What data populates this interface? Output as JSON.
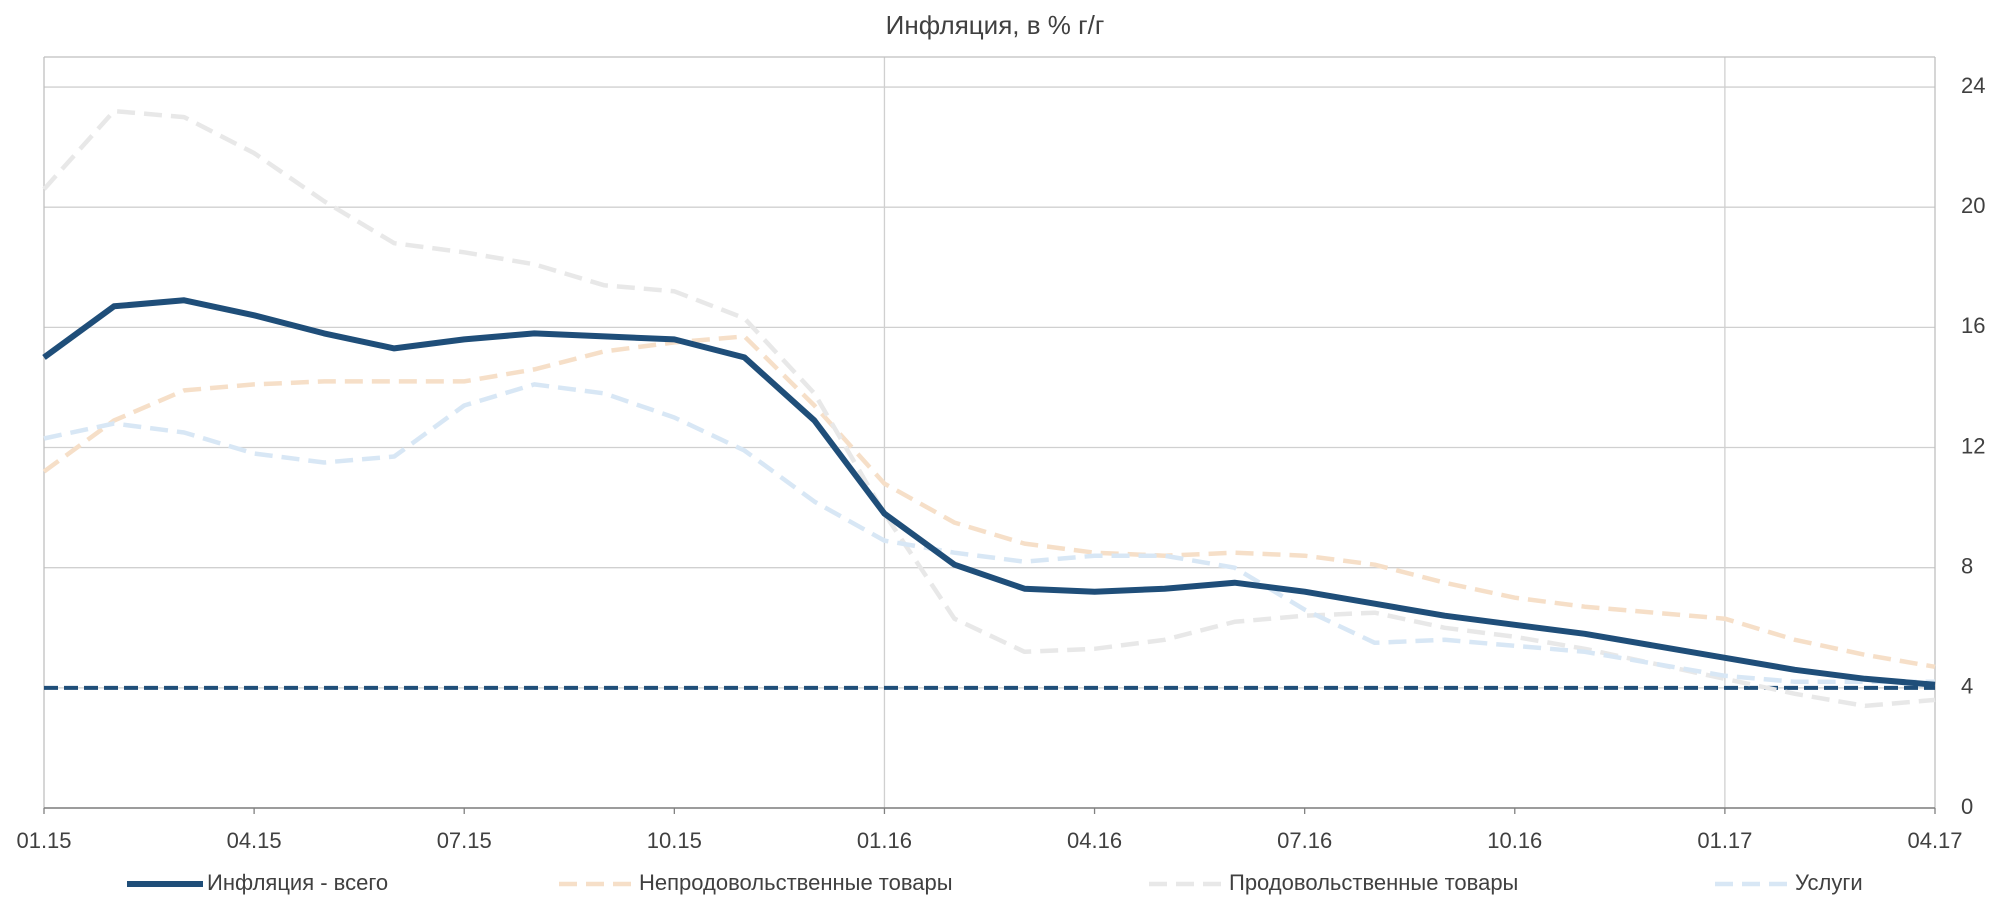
{
  "chart_data": {
    "type": "line",
    "title": "Инфляция, в % г/г",
    "categories": [
      "01.15",
      null,
      null,
      "04.15",
      null,
      null,
      "07.15",
      null,
      null,
      "10.15",
      null,
      null,
      "01.16",
      null,
      null,
      "04.16",
      null,
      null,
      "07.16",
      null,
      null,
      "10.16",
      null,
      null,
      "01.17",
      null,
      null,
      "04.17"
    ],
    "series": [
      {
        "name": "Инфляция - всего",
        "color": "#1f4e79",
        "dash": false,
        "values": [
          15.0,
          16.7,
          16.9,
          16.4,
          15.8,
          15.3,
          15.6,
          15.8,
          15.7,
          15.6,
          15.0,
          12.9,
          9.8,
          8.1,
          7.3,
          7.2,
          7.3,
          7.5,
          7.2,
          6.8,
          6.4,
          6.1,
          5.8,
          5.4,
          5.0,
          4.6,
          4.3,
          4.1
        ]
      },
      {
        "name": "Непродовольственные товары",
        "color": "#f6dfc8",
        "dash": true,
        "values": [
          11.2,
          12.9,
          13.9,
          14.1,
          14.2,
          14.2,
          14.2,
          14.6,
          15.2,
          15.5,
          15.7,
          13.4,
          10.8,
          9.5,
          8.8,
          8.5,
          8.4,
          8.5,
          8.4,
          8.1,
          7.5,
          7.0,
          6.7,
          6.5,
          6.3,
          5.6,
          5.1,
          4.7
        ]
      },
      {
        "name": "Продовольственные товары",
        "color": "#e8e8e8",
        "dash": true,
        "values": [
          20.6,
          23.2,
          23.0,
          21.8,
          20.2,
          18.8,
          18.5,
          18.1,
          17.4,
          17.2,
          16.3,
          13.8,
          9.8,
          6.3,
          5.2,
          5.3,
          5.6,
          6.2,
          6.4,
          6.5,
          6.0,
          5.7,
          5.3,
          4.8,
          4.3,
          3.8,
          3.4,
          3.6
        ]
      },
      {
        "name": "Услуги",
        "color": "#d8e7f5",
        "dash": true,
        "values": [
          12.3,
          12.8,
          12.5,
          11.8,
          11.5,
          11.7,
          13.4,
          14.1,
          13.8,
          13.0,
          11.9,
          10.2,
          8.9,
          8.5,
          8.2,
          8.4,
          8.4,
          8.0,
          6.6,
          5.5,
          5.6,
          5.4,
          5.2,
          4.8,
          4.4,
          4.2,
          4.2,
          4.2
        ]
      }
    ],
    "hlines": [
      {
        "value": 4,
        "color": "#1f4e79"
      }
    ],
    "ylim": [
      0,
      25
    ],
    "yticks": [
      0,
      4,
      8,
      12,
      16,
      20,
      24
    ],
    "y_axis_side": "right",
    "xgrid_every": 12,
    "grid": true,
    "legend": "bottom"
  }
}
